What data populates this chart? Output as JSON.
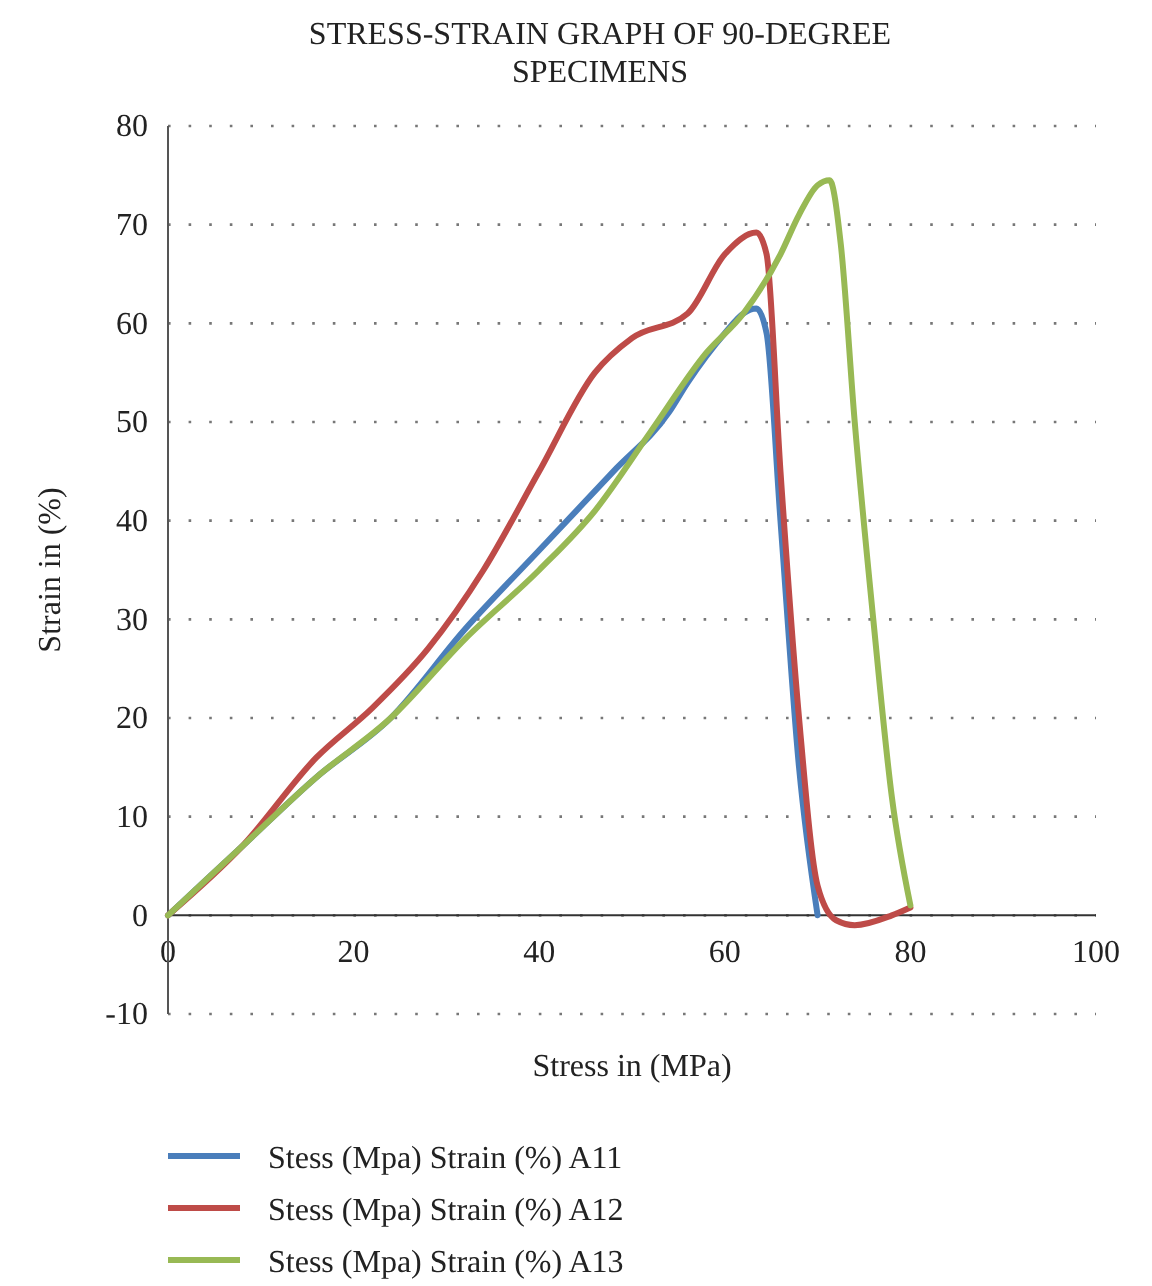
{
  "chart_data": {
    "type": "line",
    "title": "STRESS-STRAIN GRAPH OF 90-DEGREE SPECIMENS",
    "xlabel": "Stress in (MPa)",
    "ylabel": "Strain in (%)",
    "xlim": [
      0,
      100
    ],
    "xticks": [
      0,
      20,
      40,
      60,
      80,
      100
    ],
    "ylim": [
      -10,
      80
    ],
    "yticks": [
      -10,
      0,
      10,
      20,
      30,
      40,
      50,
      60,
      70,
      80
    ],
    "grid": "y",
    "legend": "bottom",
    "marker": "none",
    "line_style": "solid",
    "series": [
      {
        "name": "Stess (Mpa) Strain (%) A11",
        "color": "#4a7ebb",
        "x": [
          0,
          8,
          16,
          24,
          32,
          40,
          48,
          54,
          56,
          60,
          62,
          63.4,
          64.5,
          66,
          68,
          70
        ],
        "values": [
          0,
          7,
          14,
          20,
          29,
          37,
          45,
          51,
          54,
          59,
          61,
          61.5,
          59,
          40,
          15,
          0
        ]
      },
      {
        "name": "Stess (Mpa) Strain (%) A12",
        "color": "#be4b48",
        "x": [
          0,
          8,
          16,
          22,
          28,
          34,
          40,
          46,
          50,
          56,
          60,
          63.4,
          64.5,
          66,
          68,
          70,
          72,
          74,
          78,
          80
        ],
        "values": [
          0,
          7,
          16,
          21,
          27,
          35,
          45,
          55,
          58.5,
          61,
          67,
          69.2,
          67,
          45,
          20,
          3,
          -0.5,
          -1,
          0,
          0.8
        ]
      },
      {
        "name": "Stess (Mpa) Strain (%) A13",
        "color": "#98b954",
        "x": [
          0,
          8,
          16,
          24,
          32,
          40,
          46,
          52,
          58,
          62,
          66,
          68,
          70,
          71.3,
          72.5,
          74,
          76,
          78,
          80
        ],
        "values": [
          0,
          7,
          14,
          20,
          28,
          35,
          41,
          49,
          57,
          61,
          67,
          71,
          74,
          74.5,
          68,
          50,
          30,
          12,
          1
        ]
      }
    ]
  }
}
